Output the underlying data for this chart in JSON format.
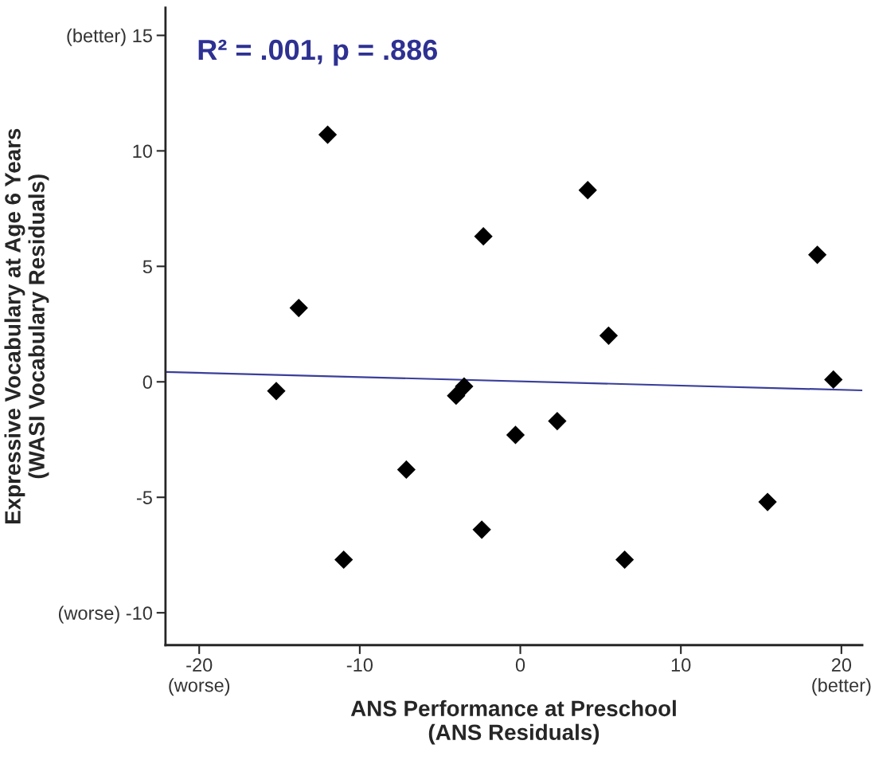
{
  "chart_data": {
    "type": "scatter",
    "xlabel": "ANS Performance at Preschool\n(ANS Residuals)",
    "ylabel": "Expressive Vocabulary at Age 6 Years\n(WASI Vocabulary Residuals)",
    "xlim": [
      -22.1,
      21.3
    ],
    "ylim": [
      -11.4,
      16.2
    ],
    "xticks": [
      {
        "value": -20,
        "label": "-20\n(worse)"
      },
      -10,
      0,
      10,
      {
        "value": 20,
        "label": "20\n(better)"
      }
    ],
    "yticks": [
      {
        "value": -10,
        "label": "(worse) -10"
      },
      -5,
      0,
      5,
      10,
      {
        "value": 15,
        "label": "(better) 15"
      }
    ],
    "grid": false,
    "legend": false,
    "annotations": [
      "R² = .001, p = .886"
    ],
    "series": [
      {
        "marker": "diamond",
        "color": "#000000",
        "x": [
          -12.0,
          4.2,
          -2.3,
          18.5,
          -13.8,
          5.5,
          19.5,
          -15.2,
          -4.0,
          -3.5,
          -0.3,
          2.3,
          -7.1,
          15.4,
          -2.4,
          -11.0,
          6.5
        ],
        "values": [
          10.7,
          8.3,
          6.3,
          5.5,
          3.2,
          2.0,
          0.1,
          -0.4,
          -0.6,
          -0.2,
          -2.3,
          -1.7,
          -3.8,
          -5.2,
          -6.4,
          -7.7,
          -7.7
        ]
      },
      {
        "type": "line",
        "marker": "none",
        "color": "#3a3f9a",
        "line_style": "solid",
        "x": [
          -22.1,
          21.3
        ],
        "values": [
          0.43,
          -0.37
        ]
      }
    ]
  }
}
